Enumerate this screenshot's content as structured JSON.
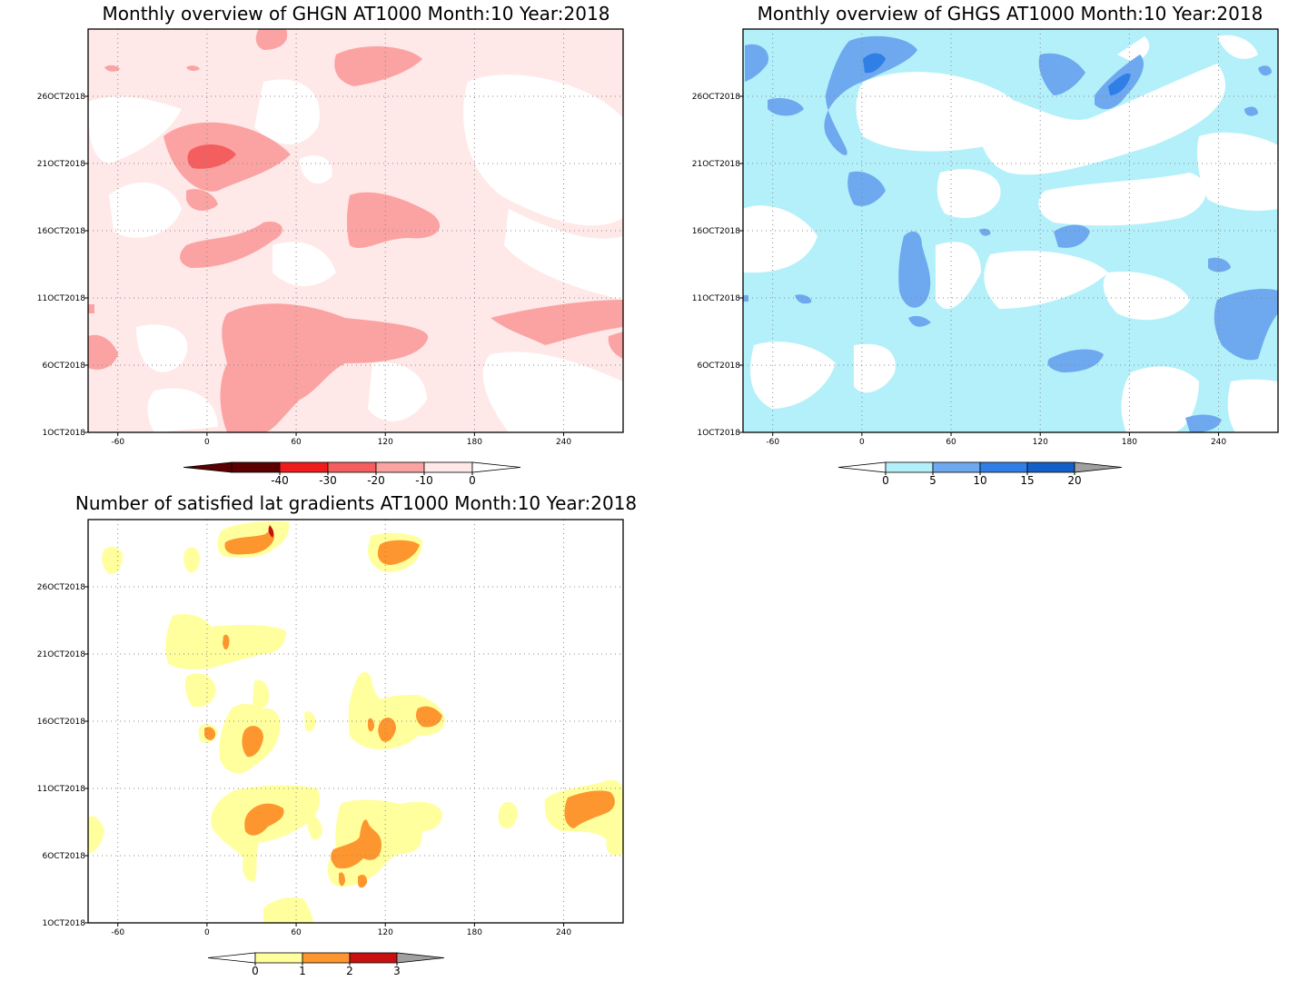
{
  "chart_data": [
    {
      "type": "heatmap",
      "title": "Monthly overview of GHGN AT1000 Month:10 Year:2018",
      "x_ticks": [
        "-60",
        "0",
        "60",
        "120",
        "180",
        "240"
      ],
      "x_values": [
        -60,
        0,
        60,
        120,
        180,
        240
      ],
      "y_ticks": [
        "1OCT2018",
        "6OCT2018",
        "11OCT2018",
        "16OCT2018",
        "21OCT2018",
        "26OCT2018"
      ],
      "y_values": [
        1,
        6,
        11,
        16,
        21,
        26
      ],
      "xlim": [
        -80,
        280
      ],
      "ylim": [
        1,
        31
      ],
      "grid": true,
      "colorbar": {
        "levels": [
          "-40",
          "-30",
          "-20",
          "-10",
          "0"
        ],
        "colors": [
          "#5a0000",
          "#ee1c1c",
          "#f55e5e",
          "#fba3a3",
          "#ffe8e8"
        ],
        "extend_low": "#5a0000",
        "extend_high": "#ffffff"
      }
    },
    {
      "type": "heatmap",
      "title": "Monthly overview of GHGS AT1000 Month:10 Year:2018",
      "x_ticks": [
        "-60",
        "0",
        "60",
        "120",
        "180",
        "240"
      ],
      "x_values": [
        -60,
        0,
        60,
        120,
        180,
        240
      ],
      "y_ticks": [
        "1OCT2018",
        "6OCT2018",
        "11OCT2018",
        "16OCT2018",
        "21OCT2018",
        "26OCT2018"
      ],
      "y_values": [
        1,
        6,
        11,
        16,
        21,
        26
      ],
      "xlim": [
        -80,
        280
      ],
      "ylim": [
        1,
        31
      ],
      "grid": true,
      "colorbar": {
        "levels": [
          "0",
          "5",
          "10",
          "15",
          "20"
        ],
        "colors": [
          "#b4f0fa",
          "#6ea8ef",
          "#2f7fe6",
          "#1560c8"
        ],
        "extend_low": "#ffffff",
        "extend_high": "#a0a0a0"
      }
    },
    {
      "type": "heatmap",
      "title": "Number of satisfied lat gradients AT1000 Month:10 Year:2018",
      "x_ticks": [
        "-60",
        "0",
        "60",
        "120",
        "180",
        "240"
      ],
      "x_values": [
        -60,
        0,
        60,
        120,
        180,
        240
      ],
      "y_ticks": [
        "1OCT2018",
        "6OCT2018",
        "11OCT2018",
        "16OCT2018",
        "21OCT2018",
        "26OCT2018"
      ],
      "y_values": [
        1,
        6,
        11,
        16,
        21,
        26
      ],
      "xlim": [
        -80,
        280
      ],
      "ylim": [
        1,
        31
      ],
      "grid": true,
      "colorbar": {
        "levels": [
          "0",
          "1",
          "2",
          "3"
        ],
        "colors": [
          "#ffff9e",
          "#fd962e",
          "#c81010"
        ],
        "extend_low": "#ffffff",
        "extend_high": "#a0a0a0"
      }
    }
  ],
  "palette": {
    "red_light": "#ffe8e8",
    "red_mid": "#fba3a3",
    "red_strong": "#f55e5e",
    "blue_light": "#b4f0fa",
    "blue_mid": "#6ea8ef",
    "blue_strong": "#2f7fe6",
    "yellow": "#ffff9e",
    "orange": "#fd962e",
    "darkred": "#c81010"
  }
}
